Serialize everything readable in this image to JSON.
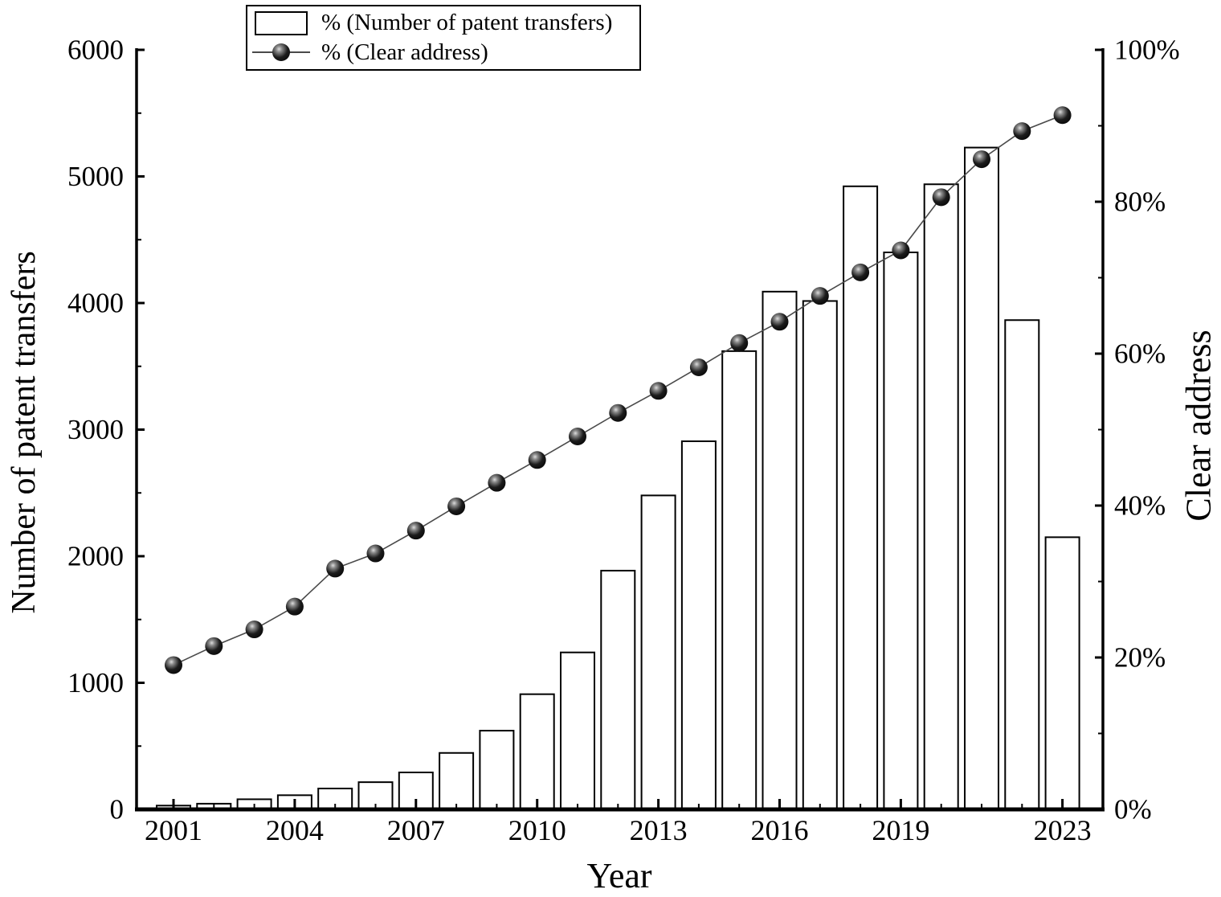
{
  "chart_data": {
    "type": "bar",
    "subtype": "bar-line-combo",
    "title": "",
    "xlabel": "Year",
    "ylabel_left": "Number of patent transfers",
    "ylabel_right": "Clear address",
    "categories": [
      "2001",
      "2002",
      "2003",
      "2004",
      "2005",
      "2006",
      "2007",
      "2008",
      "2009",
      "2010",
      "2011",
      "2012",
      "2013",
      "2014",
      "2015",
      "2016",
      "2017",
      "2018",
      "2019",
      "2020",
      "2021",
      "2022",
      "2023"
    ],
    "series": [
      {
        "name": "% (Number of patent transfers)",
        "type": "bar",
        "axis": "left",
        "values": [
          30,
          45,
          80,
          112,
          165,
          215,
          292,
          446,
          622,
          910,
          1240,
          1886,
          2480,
          2908,
          3620,
          4090,
          4016,
          4922,
          4400,
          4938,
          5228,
          3865,
          2150
        ]
      },
      {
        "name": "% (Clear address)",
        "type": "line",
        "axis": "right",
        "values": [
          19.0,
          21.5,
          23.7,
          26.7,
          31.7,
          33.7,
          36.7,
          39.9,
          43.0,
          46.0,
          49.1,
          52.2,
          55.1,
          58.2,
          61.4,
          64.2,
          67.6,
          70.7,
          73.6,
          80.6,
          85.6,
          89.3,
          91.4
        ]
      }
    ],
    "ylim_left": [
      0,
      6000
    ],
    "ylim_right": [
      0,
      100
    ],
    "ytick_labels_left": [
      "0",
      "1000",
      "2000",
      "3000",
      "4000",
      "5000",
      "6000"
    ],
    "ytick_minor_step_left": 500,
    "ytick_labels_right": [
      "0%",
      "20%",
      "40%",
      "60%",
      "80%",
      "100%"
    ],
    "ytick_minor_step_right": 10,
    "xtick_major_labels": [
      "2001",
      "2004",
      "2007",
      "2010",
      "2013",
      "2016",
      "2019",
      "2023"
    ],
    "grid": false,
    "legend_position": "top-left-inside",
    "colors": {
      "bar_fill": "#ffffff",
      "bar_stroke": "#000000",
      "line_stroke": "#4a4a4a",
      "marker_fill": "#000000",
      "axis_color": "#000000",
      "background": "#ffffff"
    }
  },
  "legend": {
    "items": [
      {
        "label": "% (Number of patent transfers)",
        "icon": "bar-swatch-icon"
      },
      {
        "label": "% (Clear address)",
        "icon": "line-marker-icon"
      }
    ]
  }
}
